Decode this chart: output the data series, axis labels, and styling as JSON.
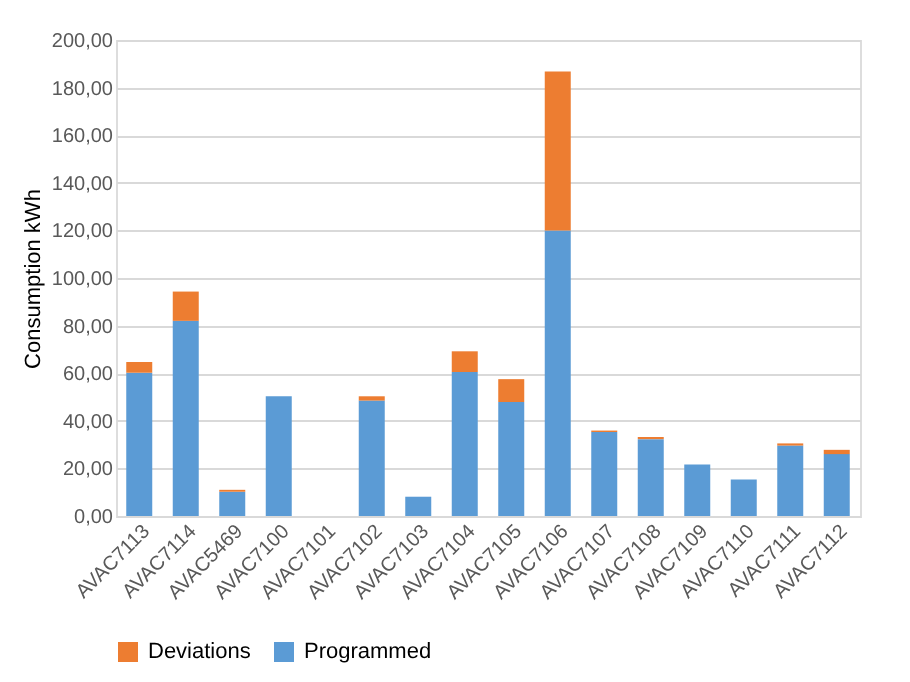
{
  "chart_data": {
    "type": "bar",
    "stacked": true,
    "ylabel": "Consumption kWh",
    "categories": [
      "AVAC7113",
      "AVAC7114",
      "AVAC5469",
      "AVAC7100",
      "AVAC7101",
      "AVAC7102",
      "AVAC7103",
      "AVAC7104",
      "AVAC7105",
      "AVAC7106",
      "AVAC7107",
      "AVAC7108",
      "AVAC7109",
      "AVAC7110",
      "AVAC7111",
      "AVAC7112"
    ],
    "series": [
      {
        "name": "Programmed",
        "color": "#5b9bd5",
        "values": [
          60.2,
          82,
          10.2,
          50.3,
          0,
          48.5,
          8.1,
          60.5,
          47.9,
          120,
          35.3,
          32.3,
          21.6,
          15.3,
          29.6,
          26
        ]
      },
      {
        "name": "Deviations",
        "color": "#ed7d31",
        "values": [
          4.5,
          12.3,
          0.8,
          0,
          0,
          1.8,
          0,
          8.7,
          9.6,
          66.8,
          0.6,
          0.9,
          0,
          0,
          0.9,
          1.8
        ]
      }
    ],
    "ylim": [
      0,
      200
    ],
    "yticks": [
      {
        "value": 0,
        "label": "0,00"
      },
      {
        "value": 20,
        "label": "20,00"
      },
      {
        "value": 40,
        "label": "40,00"
      },
      {
        "value": 60,
        "label": "60,00"
      },
      {
        "value": 80,
        "label": "80,00"
      },
      {
        "value": 100,
        "label": "100,00"
      },
      {
        "value": 120,
        "label": "120,00"
      },
      {
        "value": 140,
        "label": "140,00"
      },
      {
        "value": 160,
        "label": "160,00"
      },
      {
        "value": 180,
        "label": "180,00"
      },
      {
        "value": 200,
        "label": "200,00"
      }
    ],
    "grid": "y",
    "legend": "bottom"
  }
}
